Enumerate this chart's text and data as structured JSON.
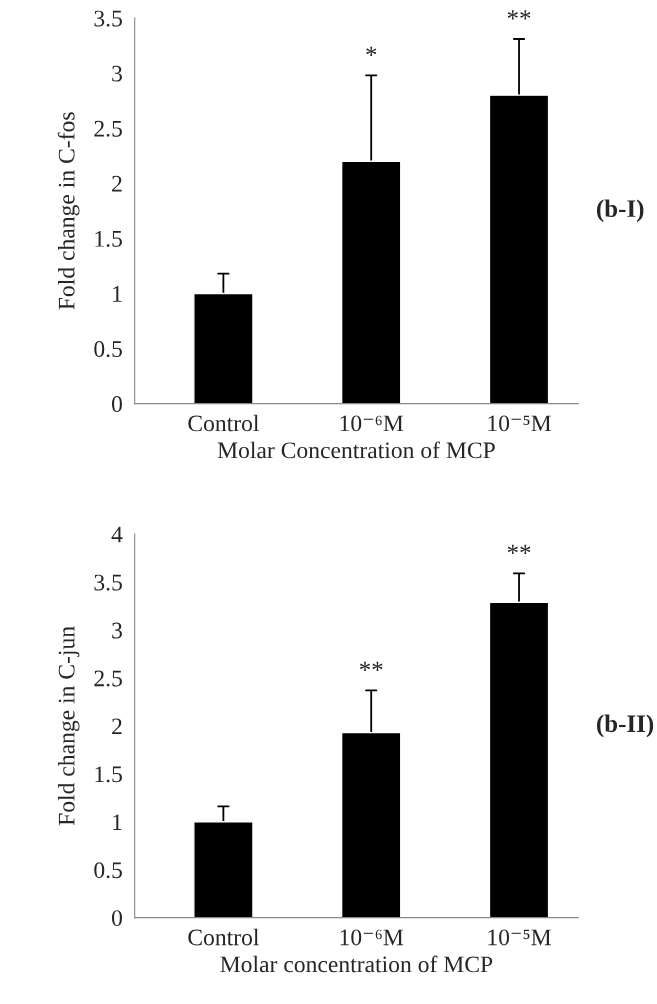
{
  "chart_data": [
    {
      "type": "bar",
      "categories": [
        "Control",
        "10⁻⁶M",
        "10⁻⁵M"
      ],
      "values": [
        1.0,
        2.2,
        2.8
      ],
      "errors": [
        [
          1.0,
          1.18
        ],
        [
          2.2,
          2.98
        ],
        [
          2.8,
          3.31
        ]
      ],
      "color": "#000000",
      "ylim": [
        0,
        3.5
      ],
      "yticks": [
        0,
        0.5,
        1,
        1.5,
        2,
        2.5,
        3,
        3.5
      ],
      "xlabel": "Molar Concentration of MCP",
      "ylabel": "Fold change in C-fos",
      "grid": false,
      "annotations": [
        {
          "text": "*",
          "x": "10⁻⁶M",
          "y": 2.98
        },
        {
          "text": "**",
          "x": "10⁻⁵M",
          "y": 3.31
        },
        "(b-I)"
      ]
    },
    {
      "type": "bar",
      "categories": [
        "Control",
        "10⁻⁶M",
        "10⁻⁵M"
      ],
      "values": [
        1.0,
        1.93,
        3.29
      ],
      "errors": [
        [
          1.0,
          1.16
        ],
        [
          1.93,
          2.37
        ],
        [
          3.29,
          3.59
        ]
      ],
      "color": "#000000",
      "ylim": [
        0,
        4
      ],
      "yticks": [
        0,
        0.5,
        1,
        1.5,
        2,
        2.5,
        3,
        3.5,
        4
      ],
      "xlabel": "Molar concentration of MCP",
      "ylabel": "Fold change in C-jun",
      "grid": false,
      "annotations": [
        {
          "text": "**",
          "x": "10⁻⁶M",
          "y": 2.37
        },
        {
          "text": "**",
          "x": "10⁻⁵M",
          "y": 3.59
        },
        "(b-II)"
      ]
    }
  ]
}
